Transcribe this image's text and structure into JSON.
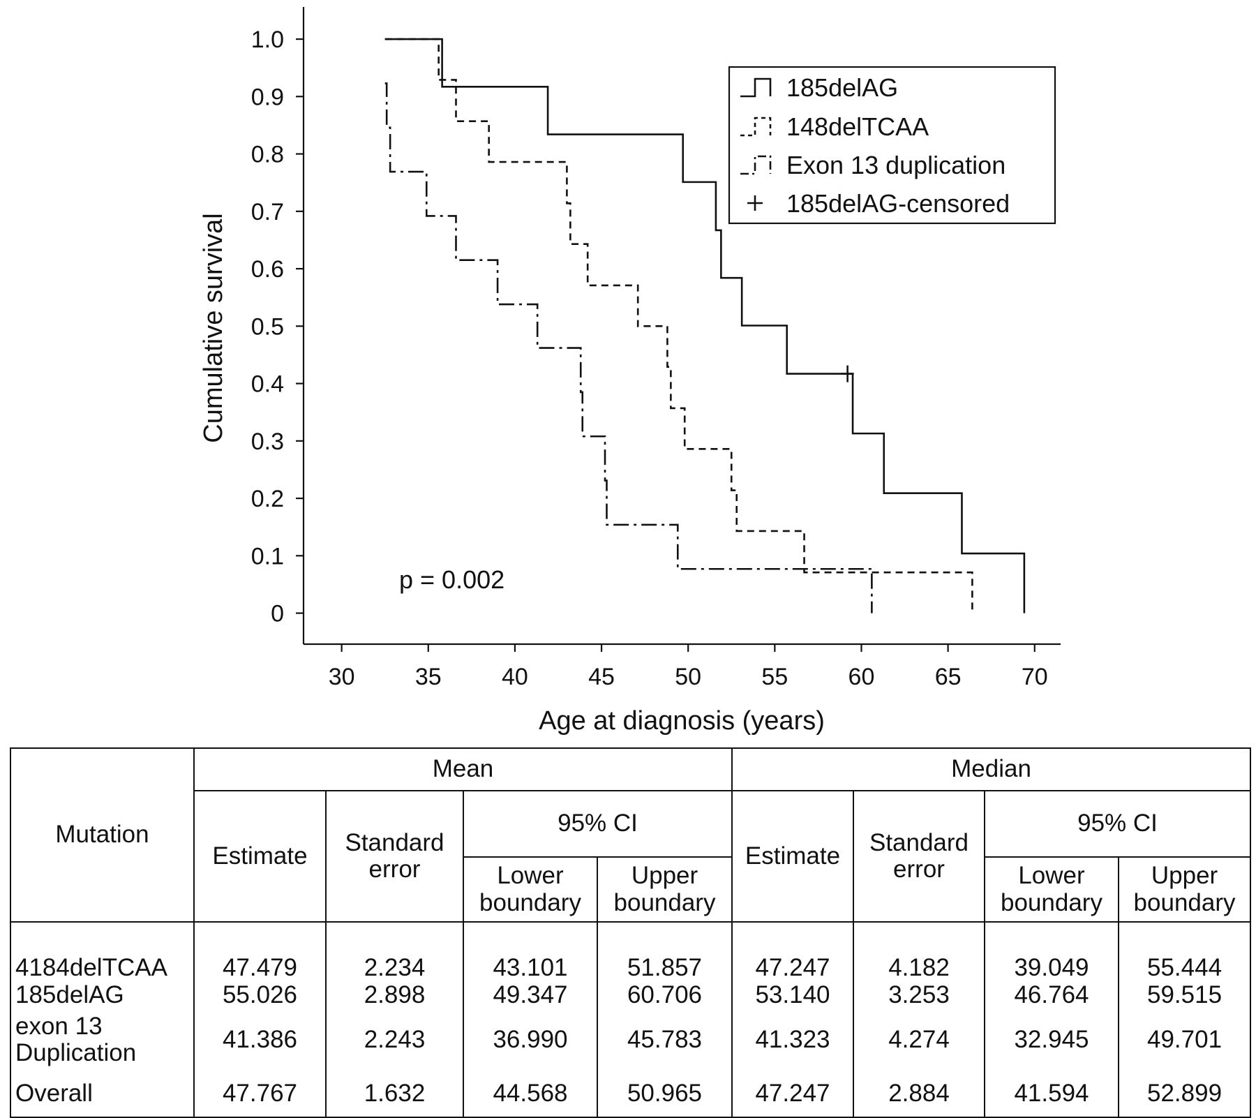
{
  "chart_data": {
    "type": "line",
    "step": true,
    "xlabel": "Age at diagnosis (years)",
    "ylabel": "Cumulative survival",
    "xlim": [
      27.8,
      71.5
    ],
    "ylim": [
      -0.054,
      1.056
    ],
    "x_ticks": [
      30,
      35,
      40,
      45,
      50,
      55,
      60,
      65,
      70
    ],
    "x_tick_labels": [
      "30",
      "35",
      "40",
      "45",
      "50",
      "55",
      "60",
      "65",
      "70"
    ],
    "y_ticks": [
      0,
      0.1,
      0.2,
      0.3,
      0.4,
      0.5,
      0.6,
      0.7,
      0.8,
      0.9,
      1.0
    ],
    "y_tick_labels": [
      "0",
      "0.1",
      "0.2",
      "0.3",
      "0.4",
      "0.5",
      "0.6",
      "0.7",
      "0.8",
      "0.9",
      "1.0"
    ],
    "grid": false,
    "legend_position": "top-right",
    "annotation": "p = 0.002",
    "series": [
      {
        "name": "185delAG",
        "style": "solid",
        "start": [
          32.5,
          1.0
        ],
        "steps": [
          [
            35.8,
            0.917
          ],
          [
            41.9,
            0.834
          ],
          [
            49.7,
            0.751
          ],
          [
            51.6,
            0.667
          ],
          [
            51.9,
            0.584
          ],
          [
            53.1,
            0.501
          ],
          [
            55.7,
            0.417
          ],
          [
            59.5,
            0.313
          ],
          [
            61.3,
            0.209
          ],
          [
            65.8,
            0.104
          ],
          [
            69.4,
            0.0
          ]
        ],
        "end_x": 69.4
      },
      {
        "name": "148delTCAA",
        "style": "dashed",
        "start": [
          32.5,
          1.0
        ],
        "steps": [
          [
            35.6,
            0.929
          ],
          [
            36.6,
            0.857
          ],
          [
            38.5,
            0.786
          ],
          [
            43.0,
            0.714
          ],
          [
            43.2,
            0.643
          ],
          [
            44.2,
            0.571
          ],
          [
            47.1,
            0.5
          ],
          [
            48.8,
            0.429
          ],
          [
            49.0,
            0.357
          ],
          [
            49.8,
            0.286
          ],
          [
            52.5,
            0.214
          ],
          [
            52.8,
            0.143
          ],
          [
            56.7,
            0.071
          ],
          [
            66.4,
            0.0
          ]
        ],
        "end_x": 66.4
      },
      {
        "name": "Exon 13 duplication",
        "style": "dash-dot",
        "start": [
          32.5,
          0.923
        ],
        "steps": [
          [
            32.6,
            0.846
          ],
          [
            32.8,
            0.769
          ],
          [
            34.9,
            0.692
          ],
          [
            36.6,
            0.615
          ],
          [
            39.0,
            0.538
          ],
          [
            41.3,
            0.462
          ],
          [
            43.8,
            0.385
          ],
          [
            43.9,
            0.308
          ],
          [
            45.2,
            0.231
          ],
          [
            45.3,
            0.154
          ],
          [
            49.4,
            0.077
          ],
          [
            60.6,
            0.0
          ]
        ],
        "end_x": 60.6
      },
      {
        "name": "185delAG-censored",
        "style": "marker-plus",
        "points": [
          [
            59.2,
            0.417
          ]
        ]
      }
    ]
  },
  "table": {
    "stub_header": "Mutation",
    "groups": [
      "Mean",
      "Median"
    ],
    "col_estimate": "Estimate",
    "col_se": "Standard\nerror",
    "col_ci": "95% CI",
    "col_lower": "Lower\nboundary",
    "col_upper": "Upper\nboundary",
    "rows": [
      {
        "label": "4184delTCAA",
        "values": [
          "47.479",
          "2.234",
          "43.101",
          "51.857",
          "47.247",
          "4.182",
          "39.049",
          "55.444"
        ]
      },
      {
        "label": "185delAG",
        "values": [
          "55.026",
          "2.898",
          "49.347",
          "60.706",
          "53.140",
          "3.253",
          "46.764",
          "59.515"
        ]
      },
      {
        "label": "exon 13\nDuplication",
        "values": [
          "41.386",
          "2.243",
          "36.990",
          "45.783",
          "41.323",
          "4.274",
          "32.945",
          "49.701"
        ]
      },
      {
        "label": "Overall",
        "values": [
          "47.767",
          "1.632",
          "44.568",
          "50.965",
          "47.247",
          "2.884",
          "41.594",
          "52.899"
        ]
      }
    ]
  }
}
